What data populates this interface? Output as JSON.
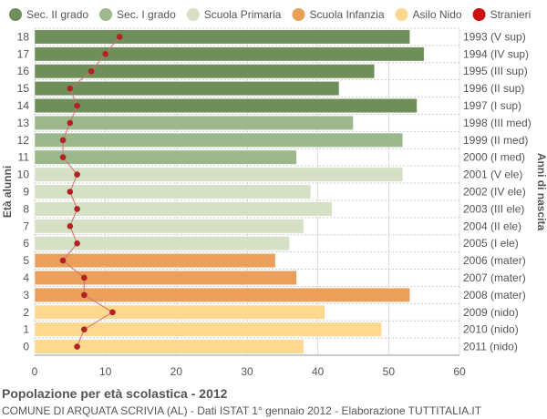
{
  "chart_data": {
    "type": "bar",
    "orientation": "horizontal",
    "title": "Popolazione per età scolastica - 2012",
    "subtitle": "COMUNE DI ARQUATA SCRIVIA (AL) - Dati ISTAT 1° gennaio 2012 - Elaborazione TUTTITALIA.IT",
    "ylabel_left": "Età alunni",
    "ylabel_right": "Anni di nascita",
    "xlim": [
      0,
      60
    ],
    "x_ticks": [
      0,
      10,
      20,
      30,
      40,
      50,
      60
    ],
    "grid": true,
    "legend_position": "top",
    "legend": [
      {
        "name": "Sec. II grado",
        "color": "#6e8f5a",
        "shape": "circle"
      },
      {
        "name": "Sec. I grado",
        "color": "#9cb88c",
        "shape": "circle"
      },
      {
        "name": "Scuola Primaria",
        "color": "#d5e0c5",
        "shape": "circle"
      },
      {
        "name": "Scuola Infanzia",
        "color": "#eaa05a",
        "shape": "circle"
      },
      {
        "name": "Asilo Nido",
        "color": "#fdd88e",
        "shape": "circle"
      },
      {
        "name": "Stranieri",
        "color": "#cc1111",
        "shape": "circle"
      }
    ],
    "categories": [
      "18",
      "17",
      "16",
      "15",
      "14",
      "13",
      "12",
      "11",
      "10",
      "9",
      "8",
      "7",
      "6",
      "5",
      "4",
      "3",
      "2",
      "1",
      "0"
    ],
    "birth_years": [
      "1993 (V sup)",
      "1994 (IV sup)",
      "1995 (III sup)",
      "1996 (II sup)",
      "1997 (I sup)",
      "1998 (III med)",
      "1999 (II med)",
      "2000 (I med)",
      "2001 (V ele)",
      "2002 (IV ele)",
      "2003 (III ele)",
      "2004 (II ele)",
      "2005 (I ele)",
      "2006 (mater)",
      "2007 (mater)",
      "2008 (mater)",
      "2009 (nido)",
      "2010 (nido)",
      "2011 (nido)"
    ],
    "values": [
      53,
      55,
      48,
      43,
      54,
      45,
      52,
      37,
      52,
      39,
      42,
      38,
      36,
      34,
      37,
      53,
      41,
      49,
      38
    ],
    "groups": [
      "Sec. II grado",
      "Sec. II grado",
      "Sec. II grado",
      "Sec. II grado",
      "Sec. II grado",
      "Sec. I grado",
      "Sec. I grado",
      "Sec. I grado",
      "Scuola Primaria",
      "Scuola Primaria",
      "Scuola Primaria",
      "Scuola Primaria",
      "Scuola Primaria",
      "Scuola Infanzia",
      "Scuola Infanzia",
      "Scuola Infanzia",
      "Asilo Nido",
      "Asilo Nido",
      "Asilo Nido"
    ],
    "stranieri": [
      12,
      10,
      8,
      5,
      6,
      5,
      4,
      4,
      6,
      5,
      6,
      5,
      6,
      4,
      7,
      7,
      11,
      7,
      6
    ],
    "colors": {
      "Sec. II grado": "#6e8f5a",
      "Sec. I grado": "#9cb88c",
      "Scuola Primaria": "#d5e0c5",
      "Scuola Infanzia": "#eaa05a",
      "Asilo Nido": "#fdd88e",
      "Stranieri": "#b22222",
      "stranieri_line": "#d07070"
    }
  }
}
